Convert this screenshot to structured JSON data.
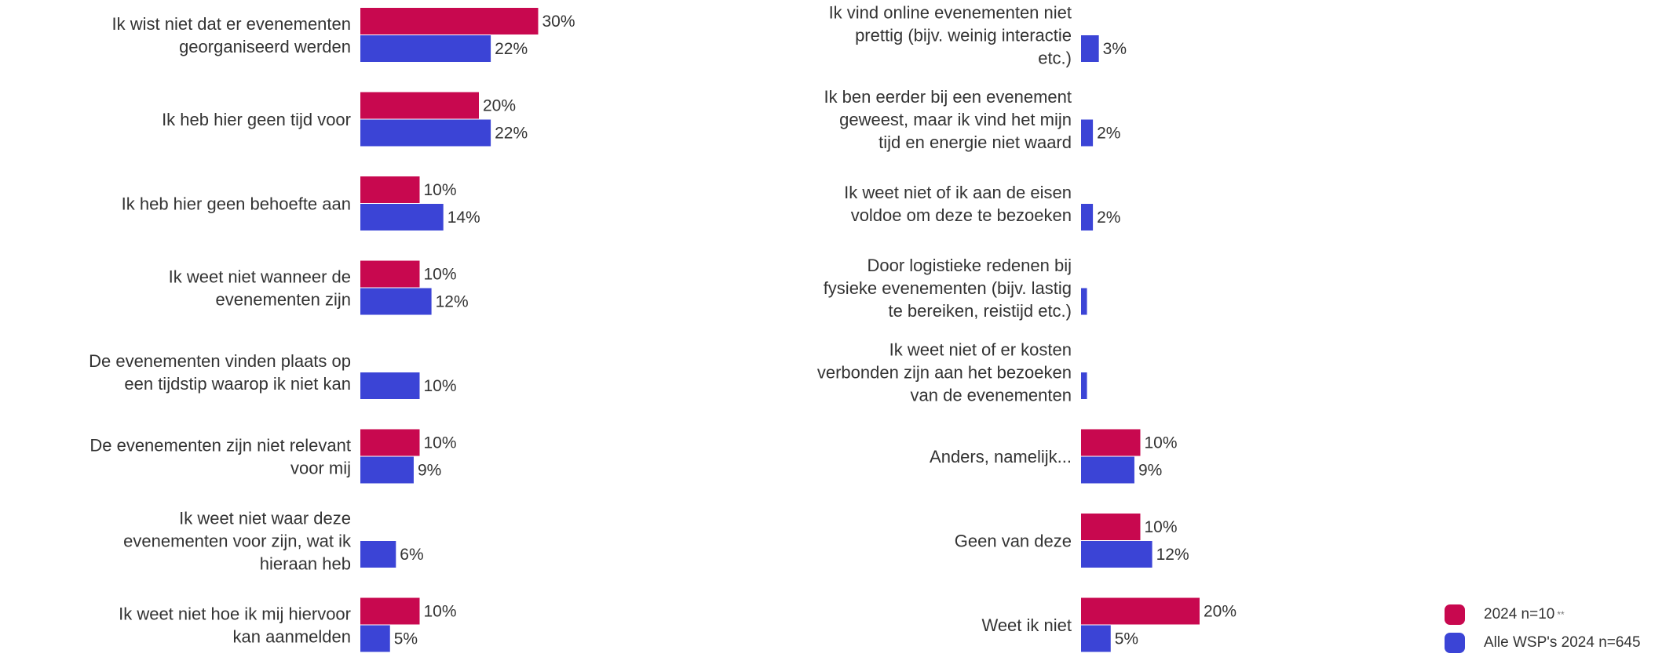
{
  "chart_data": {
    "type": "bar",
    "orientation": "horizontal",
    "value_suffix": "%",
    "series": [
      {
        "name": "2024 n=10",
        "color": "#c8084f"
      },
      {
        "name": "Alle WSP's 2024 n=645",
        "color": "#3b44d6"
      }
    ],
    "legend": {
      "position": "bottom-right",
      "footnote_mark": "**"
    },
    "panels": [
      {
        "categories": [
          "Ik wist niet dat er evenementen georganiseerd werden",
          "Ik heb hier geen tijd voor",
          "Ik heb hier geen behoefte aan",
          "Ik weet niet wanneer de evenementen zijn",
          "De evenementen vinden plaats op een tijdstip waarop ik niet kan",
          "De evenementen zijn niet relevant voor mij",
          "Ik weet niet waar deze evenementen voor zijn, wat ik hieraan heb",
          "Ik weet niet hoe ik mij hiervoor kan aanmelden"
        ],
        "values": [
          [
            30,
            22
          ],
          [
            20,
            22
          ],
          [
            10,
            14
          ],
          [
            10,
            12
          ],
          [
            null,
            10
          ],
          [
            10,
            9
          ],
          [
            null,
            6
          ],
          [
            10,
            5
          ]
        ]
      },
      {
        "categories": [
          "Ik vind online evenementen niet prettig (bijv. weinig interactie etc.)",
          "Ik ben eerder bij een evenement geweest, maar ik vind het mijn tijd en energie niet waard",
          "Ik weet niet of ik aan de eisen voldoe om deze te bezoeken",
          "Door logistieke redenen bij fysieke evenementen (bijv. lastig te bereiken, reistijd etc.)",
          "Ik weet niet of er kosten verbonden zijn aan het bezoeken van de evenementen",
          "Anders, namelijk...",
          "Geen van deze",
          "Weet ik niet"
        ],
        "values": [
          [
            null,
            3
          ],
          [
            null,
            2
          ],
          [
            null,
            2
          ],
          [
            null,
            1
          ],
          [
            null,
            1
          ],
          [
            10,
            9
          ],
          [
            10,
            12
          ],
          [
            20,
            5
          ]
        ],
        "value_labels": [
          [
            null,
            "3%"
          ],
          [
            null,
            "2%"
          ],
          [
            null,
            "2%"
          ],
          [
            null,
            ""
          ],
          [
            null,
            ""
          ],
          [
            "10%",
            "9%"
          ],
          [
            "10%",
            "12%"
          ],
          [
            "20%",
            "5%"
          ]
        ]
      }
    ]
  }
}
